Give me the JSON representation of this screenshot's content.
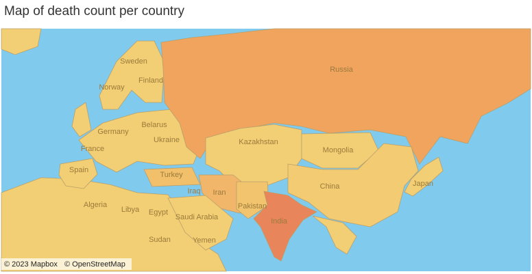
{
  "header": {
    "title": "Map of death count per country"
  },
  "map": {
    "labels": [
      "Russia",
      "Sweden",
      "Norway",
      "Finland",
      "Germany",
      "Belarus",
      "Ukraine",
      "France",
      "Spain",
      "Turkey",
      "Kazakhstan",
      "Mongolia",
      "China",
      "Japan",
      "Iran",
      "Iraq",
      "Pakistan",
      "India",
      "Algeria",
      "Libya",
      "Egypt",
      "Saudi Arabia",
      "Sudan",
      "Yemen"
    ],
    "attribution": [
      "© 2023 Mapbox",
      "© OpenStreetMap"
    ]
  }
}
